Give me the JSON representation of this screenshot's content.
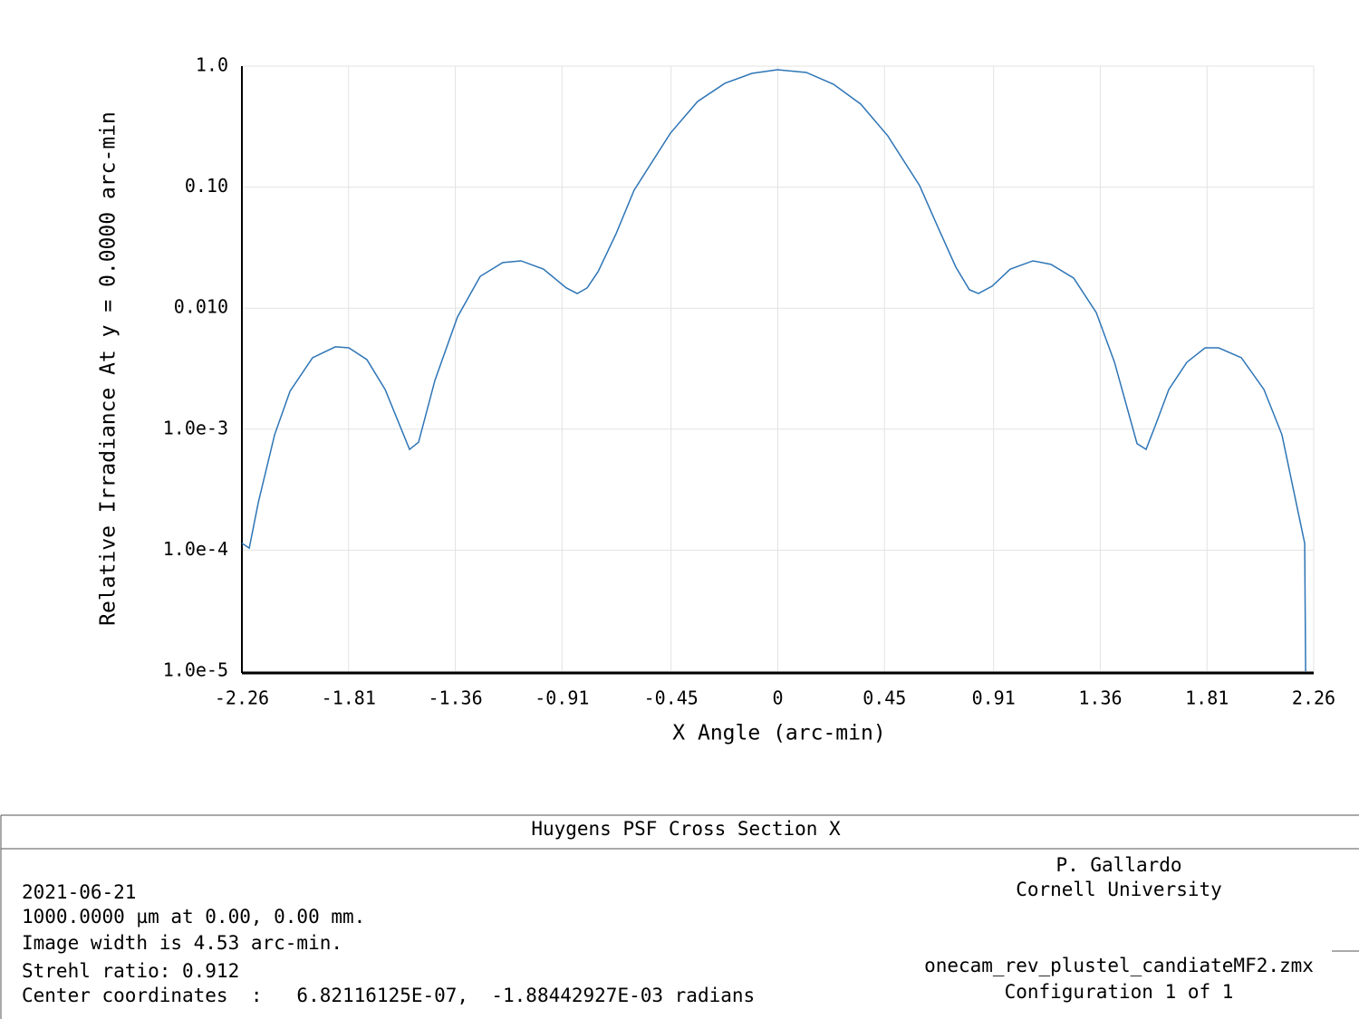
{
  "chart_data": {
    "type": "line",
    "x_label": "X Angle (arc-min)",
    "y_label": "Relative Irradiance At y = 0.0000 arc-min",
    "log_y": true,
    "grid": true,
    "color": "#2e75b6",
    "xlim": [
      -2.26,
      2.26
    ],
    "xticks": [
      -2.26,
      -1.81,
      -1.36,
      -0.91,
      -0.45,
      0,
      0.45,
      0.91,
      1.36,
      1.81,
      2.26
    ],
    "ylim": [
      1e-05,
      1
    ],
    "yticks": [
      {
        "value": 1,
        "label": "1.0"
      },
      {
        "value": 0.1,
        "label": "0.10"
      },
      {
        "value": 0.01,
        "label": "0.010"
      },
      {
        "value": 0.001,
        "label": "1.0e-3"
      },
      {
        "value": 0.0001,
        "label": "1.0e-4"
      },
      {
        "value": 1e-05,
        "label": "1.0e-5"
      }
    ],
    "x": [
      -2.26,
      -2.229,
      -2.191,
      -2.122,
      -2.057,
      -1.962,
      -1.866,
      -1.809,
      -1.733,
      -1.656,
      -1.553,
      -1.515,
      -1.446,
      -1.351,
      -1.255,
      -1.16,
      -1.083,
      -0.988,
      -0.892,
      -0.846,
      -0.804,
      -0.758,
      -0.682,
      -0.606,
      -0.453,
      -0.338,
      -0.223,
      -0.109,
      -0.002,
      0.12,
      0.235,
      0.35,
      0.464,
      0.598,
      0.674,
      0.751,
      0.808,
      0.846,
      0.904,
      0.98,
      1.076,
      1.152,
      1.248,
      1.343,
      1.42,
      1.515,
      1.553,
      1.592,
      1.649,
      1.725,
      1.802,
      1.859,
      1.955,
      2.05,
      2.126,
      2.222,
      2.226
    ],
    "values": [
      0.000114,
      0.000104,
      0.000247,
      0.0009,
      0.00206,
      0.00389,
      0.00479,
      0.0047,
      0.00376,
      0.00213,
      0.00068,
      0.00078,
      0.00253,
      0.00845,
      0.0183,
      0.0238,
      0.0246,
      0.021,
      0.0147,
      0.0132,
      0.0147,
      0.02,
      0.0412,
      0.0944,
      0.279,
      0.511,
      0.721,
      0.871,
      0.933,
      0.887,
      0.708,
      0.485,
      0.265,
      0.103,
      0.0473,
      0.0218,
      0.0142,
      0.0132,
      0.0152,
      0.021,
      0.0246,
      0.023,
      0.0177,
      0.0092,
      0.00357,
      0.00076,
      0.00068,
      0.00107,
      0.00213,
      0.00357,
      0.0047,
      0.0047,
      0.00389,
      0.00213,
      0.0009,
      0.000114,
      1e-05
    ]
  },
  "footer": {
    "title": "Huygens PSF Cross Section X",
    "left": [
      "2021-06-21",
      "1000.0000 µm at 0.00, 0.00 mm.",
      "Image width is 4.53 arc-min.",
      "Strehl ratio: 0.912",
      "Center coordinates  :   6.82116125E-07,  -1.88442927E-03 radians"
    ],
    "right": [
      "P. Gallardo",
      "Cornell University",
      "onecam_rev_plustel_candiateMF2.zmx",
      "Configuration 1 of 1"
    ]
  }
}
